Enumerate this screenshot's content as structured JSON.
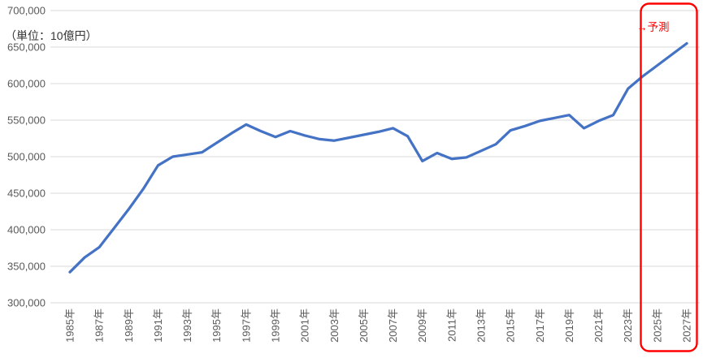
{
  "chart_data": {
    "type": "line",
    "title": "",
    "unit_label": "（単位：10億円）",
    "forecast_label": "→予測",
    "xlabel": "",
    "ylabel": "",
    "ylim": [
      300000,
      700000
    ],
    "grid": true,
    "legend": "none",
    "line_color": "#4472C4",
    "forecast_box_color": "#FF0000",
    "gridline_color": "#D9D9D9",
    "tick_text_color": "#595959",
    "y_tick_labels": [
      "700,000",
      "650,000",
      "600,000",
      "550,000",
      "500,000",
      "450,000",
      "400,000",
      "350,000",
      "300,000"
    ],
    "y_tick_values": [
      700000,
      650000,
      600000,
      550000,
      500000,
      450000,
      400000,
      350000,
      300000
    ],
    "x_tick_labels": [
      "1985年",
      "1987年",
      "1989年",
      "1991年",
      "1993年",
      "1995年",
      "1997年",
      "1999年",
      "2001年",
      "2003年",
      "2005年",
      "2007年",
      "2009年",
      "2011年",
      "2013年",
      "2015年",
      "2017年",
      "2019年",
      "2021年",
      "2023年",
      "2025年",
      "2027年"
    ],
    "x_tick_label_step": 2,
    "years": [
      1985,
      1986,
      1987,
      1988,
      1989,
      1990,
      1991,
      1992,
      1993,
      1994,
      1995,
      1996,
      1997,
      1998,
      1999,
      2000,
      2001,
      2002,
      2003,
      2004,
      2005,
      2006,
      2007,
      2008,
      2009,
      2010,
      2011,
      2012,
      2013,
      2014,
      2015,
      2016,
      2017,
      2018,
      2019,
      2020,
      2021,
      2022,
      2023,
      2024,
      2025,
      2026,
      2027
    ],
    "series": [
      {
        "name": "",
        "values": [
          342000,
          362000,
          376000,
          402000,
          428000,
          456000,
          488000,
          500000,
          503000,
          506000,
          519000,
          532000,
          544000,
          535000,
          527000,
          535000,
          529000,
          524000,
          522000,
          526000,
          530000,
          534000,
          539000,
          528000,
          494000,
          505000,
          497000,
          499000,
          508000,
          517000,
          536000,
          542000,
          549000,
          553000,
          557000,
          539000,
          549000,
          557000,
          593000,
          610000,
          625000,
          640000,
          655000
        ]
      }
    ],
    "forecast_region": {
      "label": "→予測",
      "years_covered": [
        2025,
        2026,
        2027
      ]
    }
  }
}
